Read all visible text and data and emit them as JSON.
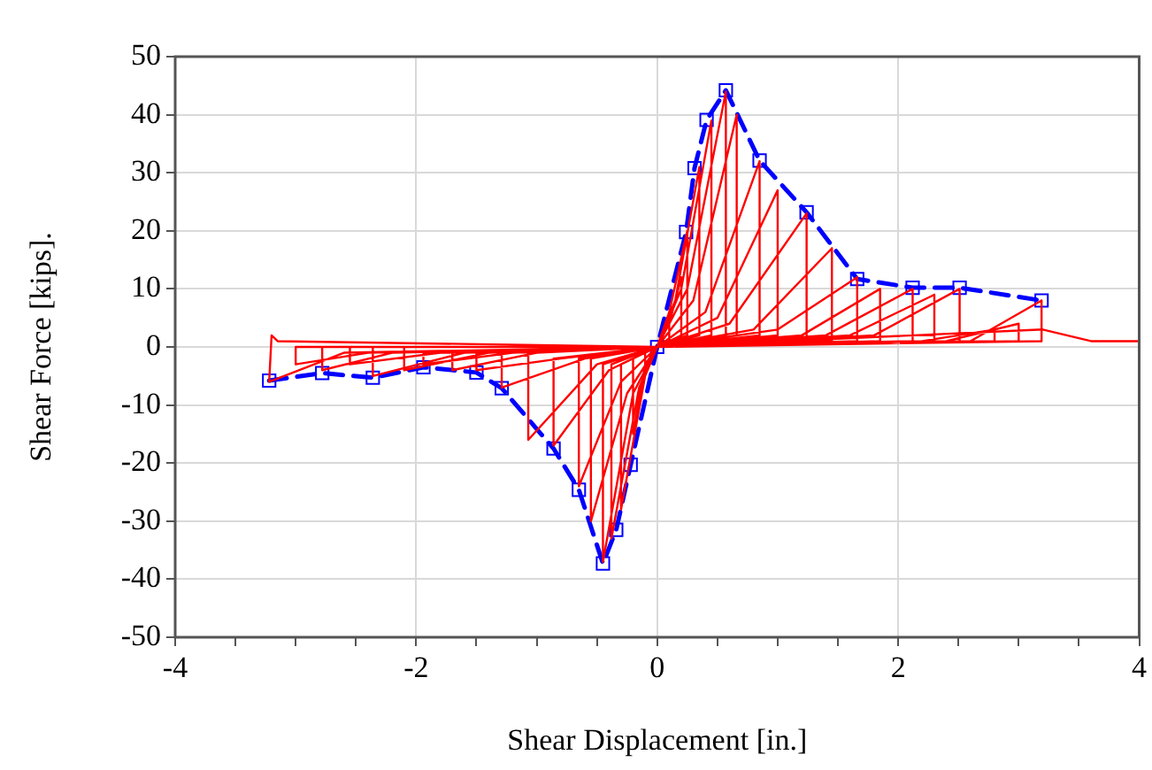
{
  "chart_data": {
    "type": "line",
    "xlabel": "Shear Displacement [in.]",
    "ylabel": "Shear Force [kips].",
    "xlim": [
      -4,
      4
    ],
    "ylim": [
      -50,
      50
    ],
    "xticks": [
      -4,
      {
        "value": -3.5,
        "label": null
      },
      {
        "value": -3,
        "label": null
      },
      {
        "value": -2.5,
        "label": null
      },
      -2,
      {
        "value": -1.5,
        "label": null
      },
      {
        "value": -1,
        "label": null
      },
      {
        "value": -0.5,
        "label": null
      },
      0,
      {
        "value": 0.5,
        "label": null
      },
      {
        "value": 1,
        "label": null
      },
      {
        "value": 1.5,
        "label": null
      },
      2,
      {
        "value": 2.5,
        "label": null
      },
      {
        "value": 3,
        "label": null
      },
      {
        "value": 3.5,
        "label": null
      },
      4
    ],
    "yticks": [
      -50,
      -40,
      -30,
      -20,
      -10,
      0,
      10,
      20,
      30,
      40,
      50
    ],
    "grid": true,
    "legend": false,
    "series": [
      {
        "color": "#ff0000",
        "marker": "none",
        "line_style": "solid",
        "x": [
          0,
          0.05,
          0.1,
          0.1,
          0,
          -0.05,
          -0.1,
          -0.1,
          0,
          0.1,
          0.2,
          0.2,
          0,
          -0.1,
          -0.2,
          -0.2,
          0,
          0.1,
          0.25,
          0.25,
          0,
          -0.1,
          -0.3,
          -0.3,
          0,
          0.15,
          0.35,
          0.35,
          0,
          -0.15,
          -0.38,
          -0.38,
          0,
          0.2,
          0.45,
          0.45,
          0,
          -0.2,
          -0.45,
          -0.45,
          0,
          0.25,
          0.57,
          0.57,
          0,
          -0.25,
          -0.55,
          -0.55,
          0,
          0.3,
          0.66,
          0.66,
          0,
          -0.3,
          -0.65,
          -0.65,
          0,
          0.4,
          0.85,
          0.85,
          0,
          -0.4,
          -0.86,
          -0.86,
          0,
          0.5,
          1.0,
          1.0,
          0,
          -0.5,
          -1.07,
          -1.07,
          0,
          0.6,
          1.24,
          1.24,
          0,
          -0.6,
          -1.29,
          -1.29,
          0,
          0.8,
          1.45,
          1.45,
          0,
          -0.8,
          -1.5,
          -1.5,
          0,
          1.0,
          1.66,
          1.66,
          0,
          -1.0,
          -1.7,
          -1.7,
          0,
          1.2,
          1.85,
          1.85,
          0,
          -1.2,
          -1.94,
          -1.94,
          0,
          1.4,
          2.12,
          2.12,
          0,
          -1.4,
          -2.1,
          -2.1,
          0,
          1.6,
          2.3,
          2.3,
          0,
          -1.6,
          -2.36,
          -2.36,
          0,
          1.8,
          2.51,
          2.51,
          0,
          -1.8,
          -2.55,
          -2.55,
          0,
          2.2,
          2.8,
          2.8,
          0,
          -2.2,
          -2.78,
          -2.78,
          0,
          2.4,
          3.0,
          3.0,
          0,
          -2.4,
          -3.0,
          -3.0,
          0,
          2.6,
          3.19,
          3.19,
          0,
          -2.6,
          -3.22,
          -3.2,
          -3.15,
          0,
          3.2,
          3.4,
          3.6,
          3.8,
          4.0
        ],
        "values": [
          0,
          2,
          5,
          1,
          0,
          -1,
          -5,
          -1,
          0,
          4,
          12,
          2,
          0,
          -3,
          -15,
          -2,
          0,
          6,
          20,
          2,
          0,
          -5,
          -28,
          -3,
          0,
          8,
          31,
          2,
          0,
          -7,
          -33,
          -3,
          0,
          10,
          39,
          2,
          0,
          -8,
          -37,
          -3,
          0,
          10,
          44,
          2,
          0,
          -8,
          -30,
          -2,
          0,
          8,
          40,
          2,
          0,
          -6,
          -24,
          -2,
          0,
          6,
          32,
          2,
          0,
          -4,
          -17,
          -2,
          0,
          5,
          27,
          2,
          0,
          -3,
          -16,
          -1,
          0,
          4,
          23,
          1,
          0,
          -2,
          -7,
          -1,
          0,
          3,
          17,
          1,
          0,
          -2,
          -4,
          -1,
          0,
          3,
          12,
          1,
          0,
          -1,
          -4,
          -1,
          0,
          2,
          10,
          1,
          0,
          -1,
          -3,
          -1,
          0,
          2,
          10,
          1,
          0,
          -1,
          -4,
          0,
          0,
          2,
          9,
          1,
          0,
          -1,
          -5,
          0,
          0,
          2,
          10,
          1,
          0,
          -1,
          -3,
          0,
          0,
          1,
          3,
          1,
          0,
          -1,
          -4,
          0,
          0,
          1,
          4,
          1,
          0,
          -1,
          -3,
          0,
          0,
          1,
          8,
          1,
          0,
          -1,
          -6,
          2,
          1,
          0,
          3,
          2,
          1,
          1,
          1
        ]
      },
      {
        "color": "#0000ff",
        "marker": "square",
        "line_style": "dashed",
        "x": [
          -3.22,
          -2.78,
          -2.36,
          -1.94,
          -1.5,
          -1.29,
          -0.86,
          -0.65,
          -0.45,
          -0.34,
          -0.22,
          0,
          0.24,
          0.31,
          0.41,
          0.57,
          0.85,
          1.24,
          1.66,
          2.12,
          2.51,
          3.19
        ],
        "values": [
          -5.8,
          -4.5,
          -5.3,
          -3.5,
          -4.4,
          -7.1,
          -17.5,
          -24.6,
          -37.3,
          -31.5,
          -20.3,
          0,
          19.8,
          30.8,
          39.1,
          44.2,
          32.1,
          23.2,
          11.7,
          10.2,
          10.2,
          8.0
        ]
      }
    ]
  }
}
